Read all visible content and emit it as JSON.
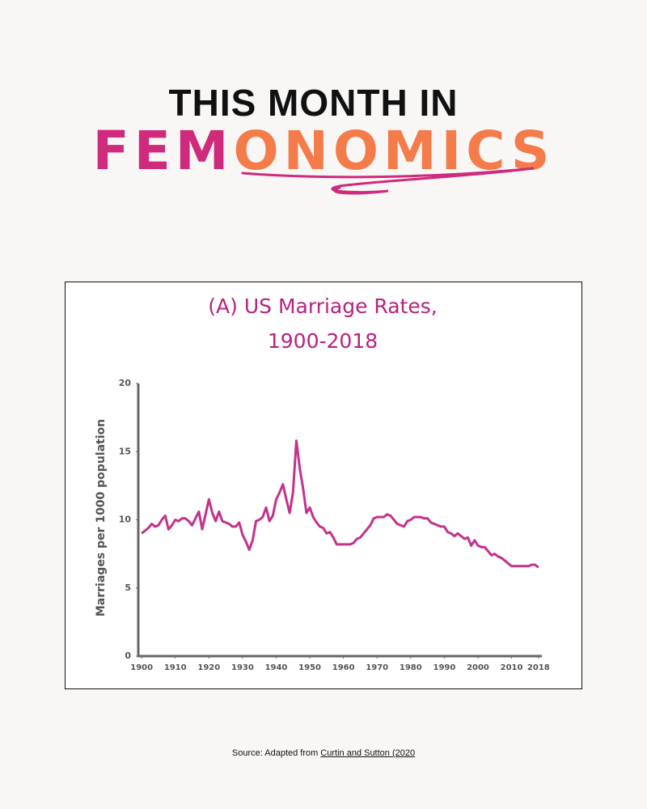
{
  "header": {
    "line1": "THIS MONTH IN",
    "brand_part1": "FEM",
    "brand_part2": "ONOMICS"
  },
  "chart_data": {
    "type": "line",
    "title": [
      "(A) US Marriage Rates,",
      "1900-2018"
    ],
    "ylabel": "Marriages per 1000 population",
    "color": "#c2338b",
    "x": [
      1900,
      1901,
      1902,
      1903,
      1904,
      1905,
      1906,
      1907,
      1908,
      1909,
      1910,
      1911,
      1912,
      1913,
      1914,
      1915,
      1916,
      1917,
      1918,
      1919,
      1920,
      1921,
      1922,
      1923,
      1924,
      1925,
      1926,
      1927,
      1928,
      1929,
      1930,
      1931,
      1932,
      1933,
      1934,
      1935,
      1936,
      1937,
      1938,
      1939,
      1940,
      1941,
      1942,
      1943,
      1944,
      1945,
      1946,
      1947,
      1948,
      1949,
      1950,
      1951,
      1952,
      1953,
      1954,
      1955,
      1956,
      1957,
      1958,
      1959,
      1960,
      1961,
      1962,
      1963,
      1964,
      1965,
      1966,
      1967,
      1968,
      1969,
      1970,
      1971,
      1972,
      1973,
      1974,
      1975,
      1976,
      1977,
      1978,
      1979,
      1980,
      1981,
      1982,
      1983,
      1984,
      1985,
      1986,
      1987,
      1988,
      1989,
      1990,
      1991,
      1992,
      1993,
      1994,
      1995,
      1996,
      1997,
      1998,
      1999,
      2000,
      2001,
      2002,
      2003,
      2004,
      2005,
      2006,
      2007,
      2008,
      2009,
      2010,
      2011,
      2012,
      2013,
      2014,
      2015,
      2016,
      2017,
      2018
    ],
    "values": [
      9.0,
      9.2,
      9.4,
      9.7,
      9.5,
      9.6,
      10.0,
      10.3,
      9.3,
      9.6,
      10.0,
      9.9,
      10.1,
      10.1,
      9.9,
      9.6,
      10.1,
      10.6,
      9.3,
      10.4,
      11.5,
      10.5,
      9.9,
      10.6,
      9.9,
      9.8,
      9.7,
      9.5,
      9.5,
      9.8,
      8.9,
      8.4,
      7.8,
      8.5,
      9.9,
      10.0,
      10.2,
      10.9,
      9.9,
      10.3,
      11.5,
      12.0,
      12.6,
      11.5,
      10.5,
      12.0,
      15.8,
      13.8,
      12.3,
      10.5,
      10.9,
      10.2,
      9.8,
      9.5,
      9.4,
      9.0,
      9.1,
      8.7,
      8.2,
      8.2,
      8.2,
      8.2,
      8.2,
      8.3,
      8.6,
      8.7,
      9.0,
      9.3,
      9.6,
      10.1,
      10.2,
      10.2,
      10.2,
      10.4,
      10.3,
      10.0,
      9.7,
      9.6,
      9.5,
      9.9,
      10.0,
      10.2,
      10.2,
      10.2,
      10.1,
      10.1,
      9.8,
      9.7,
      9.6,
      9.5,
      9.5,
      9.1,
      9.0,
      8.8,
      9.0,
      8.8,
      8.6,
      8.7,
      8.1,
      8.5,
      8.1,
      8.0,
      8.0,
      7.7,
      7.4,
      7.5,
      7.3,
      7.2,
      7.0,
      6.8,
      6.6,
      6.6,
      6.6,
      6.6,
      6.6,
      6.6,
      6.7,
      6.7,
      6.5
    ],
    "xlim": [
      1899,
      2019
    ],
    "xticks": [
      1900,
      1910,
      1920,
      1930,
      1940,
      1950,
      1960,
      1970,
      1980,
      1990,
      2000,
      2010,
      2018
    ],
    "ylim": [
      0,
      20
    ],
    "yticks": [
      0,
      5,
      10,
      15,
      20
    ]
  },
  "source": {
    "prefix": "Source: Adapted from",
    "link": "Curtin and Sutton (2020"
  }
}
